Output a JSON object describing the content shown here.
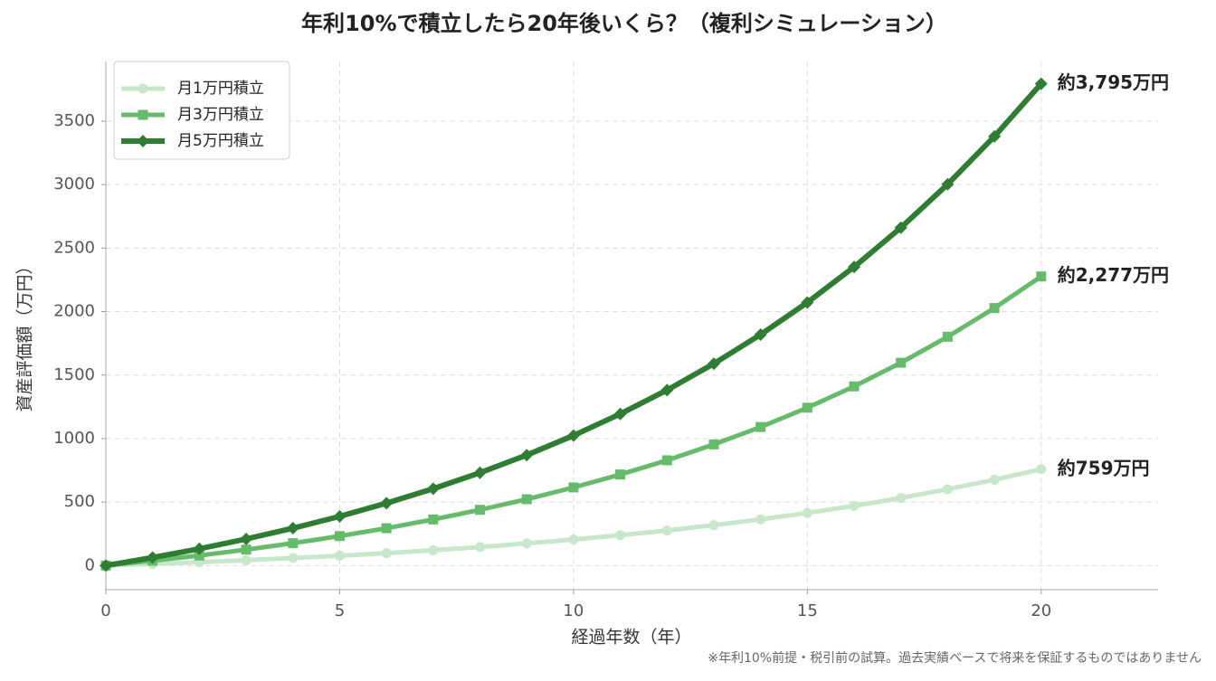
{
  "chart_data": {
    "type": "line",
    "title": "年利10%で積立したら20年後いくら？（複利シミュレーション）",
    "xlabel": "経過年数（年）",
    "ylabel": "資産評価額（万円）",
    "footnote": "※年利10%前提・税引前の試算。過去実績ベースで将来を保証するものではありません",
    "x": [
      0,
      1,
      2,
      3,
      4,
      5,
      6,
      7,
      8,
      9,
      10,
      11,
      12,
      13,
      14,
      15,
      16,
      17,
      18,
      19,
      20
    ],
    "series": [
      {
        "name": "月1万円積立",
        "color": "#c8e6c9",
        "marker": "circle",
        "width": 5,
        "values": [
          0,
          13,
          26,
          42,
          59,
          77,
          98,
          121,
          146,
          174,
          205,
          239,
          276,
          318,
          364,
          414,
          470,
          532,
          601,
          676,
          759
        ],
        "value_labels": [
          null,
          null,
          null,
          null,
          null,
          null,
          null,
          null,
          null,
          null,
          null,
          null,
          null,
          null,
          null,
          null,
          null,
          null,
          null,
          null,
          "約759万円"
        ]
      },
      {
        "name": "月3万円積立",
        "color": "#66bb6a",
        "marker": "square",
        "width": 5,
        "values": [
          0,
          38,
          79,
          125,
          176,
          232,
          294,
          363,
          439,
          522,
          615,
          717,
          829,
          954,
          1091,
          1243,
          1411,
          1597,
          1802,
          2028,
          2277
        ],
        "value_labels": [
          null,
          null,
          null,
          null,
          null,
          null,
          null,
          null,
          null,
          null,
          null,
          null,
          null,
          null,
          null,
          null,
          null,
          null,
          null,
          null,
          "約2,277万円"
        ]
      },
      {
        "name": "月5万円積立",
        "color": "#2e7d32",
        "marker": "diamond",
        "width": 6,
        "values": [
          0,
          63,
          132,
          209,
          294,
          387,
          491,
          605,
          731,
          870,
          1024,
          1194,
          1382,
          1590,
          1819,
          2072,
          2352,
          2661,
          3003,
          3380,
          3795
        ],
        "value_labels": [
          null,
          null,
          null,
          null,
          null,
          null,
          null,
          null,
          null,
          null,
          null,
          null,
          null,
          null,
          null,
          null,
          null,
          null,
          null,
          null,
          "約3,795万円"
        ]
      }
    ],
    "xlim": [
      0,
      22.5
    ],
    "xticks": [
      0,
      5,
      10,
      15,
      20
    ],
    "ylim": [
      -190,
      3970
    ],
    "yticks": [
      0,
      500,
      1000,
      1500,
      2000,
      2500,
      3000,
      3500
    ],
    "grid": true,
    "legend": "upper left"
  }
}
